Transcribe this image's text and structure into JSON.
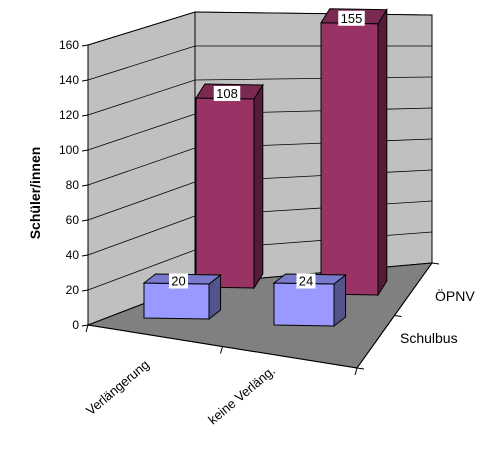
{
  "chart_data": {
    "type": "bar",
    "title": "",
    "ylabel": "Schüler/innen",
    "xlabel": "",
    "ylim": [
      0,
      160
    ],
    "y_ticks": [
      0,
      20,
      40,
      60,
      80,
      100,
      120,
      140,
      160
    ],
    "categories": [
      "Verlängerung",
      "keine Verläng."
    ],
    "series": [
      {
        "name": "Schulbus",
        "values": [
          20,
          24
        ],
        "color": "#9999ff"
      },
      {
        "name": "ÖPNV",
        "values": [
          108,
          155
        ],
        "color": "#993366"
      }
    ],
    "grid": true,
    "wall_color": "#c0c0c0",
    "floor_color": "#808080"
  }
}
